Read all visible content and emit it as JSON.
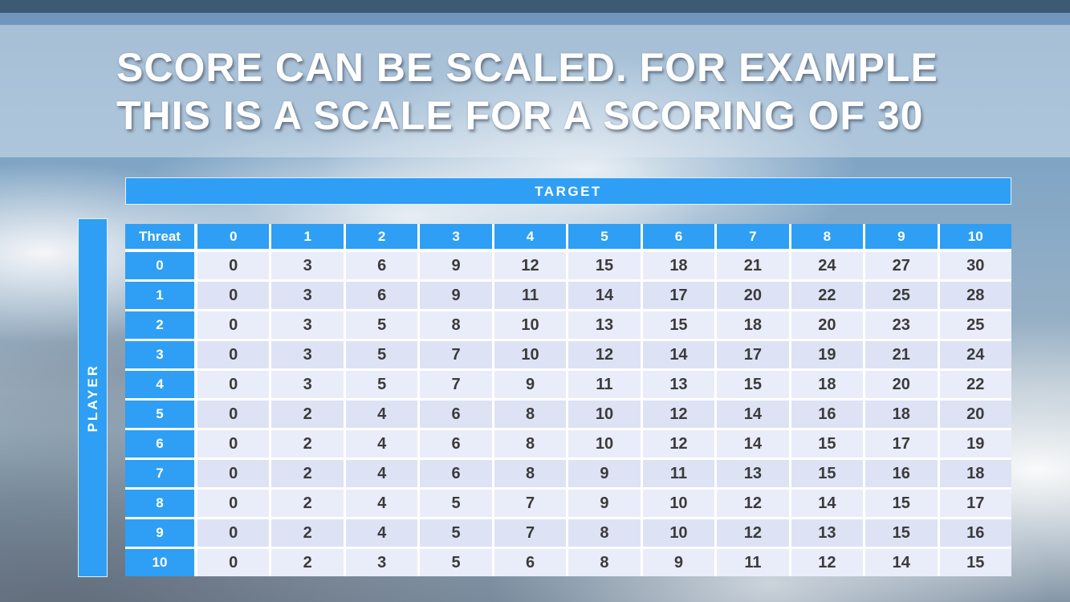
{
  "slide": {
    "title_line1": "SCORE CAN BE SCALED. FOR EXAMPLE",
    "title_line2": "THIS IS A SCALE FOR A SCORING OF 30"
  },
  "table": {
    "target_label": "TARGET",
    "player_label": "PLAYER",
    "corner_label": "Threat",
    "col_headers": [
      "0",
      "1",
      "2",
      "3",
      "4",
      "5",
      "6",
      "7",
      "8",
      "9",
      "10"
    ],
    "row_headers": [
      "0",
      "1",
      "2",
      "3",
      "4",
      "5",
      "6",
      "7",
      "8",
      "9",
      "10"
    ],
    "rows": [
      [
        0,
        3,
        6,
        9,
        12,
        15,
        18,
        21,
        24,
        27,
        30
      ],
      [
        0,
        3,
        6,
        9,
        11,
        14,
        17,
        20,
        22,
        25,
        28
      ],
      [
        0,
        3,
        5,
        8,
        10,
        13,
        15,
        18,
        20,
        23,
        25
      ],
      [
        0,
        3,
        5,
        7,
        10,
        12,
        14,
        17,
        19,
        21,
        24
      ],
      [
        0,
        3,
        5,
        7,
        9,
        11,
        13,
        15,
        18,
        20,
        22
      ],
      [
        0,
        2,
        4,
        6,
        8,
        10,
        12,
        14,
        16,
        18,
        20
      ],
      [
        0,
        2,
        4,
        6,
        8,
        10,
        12,
        14,
        15,
        17,
        19
      ],
      [
        0,
        2,
        4,
        6,
        8,
        9,
        11,
        13,
        15,
        16,
        18
      ],
      [
        0,
        2,
        4,
        5,
        7,
        9,
        10,
        12,
        14,
        15,
        17
      ],
      [
        0,
        2,
        4,
        5,
        7,
        8,
        10,
        12,
        13,
        15,
        16
      ],
      [
        0,
        2,
        3,
        5,
        6,
        8,
        9,
        11,
        12,
        14,
        15
      ]
    ]
  },
  "colors": {
    "header_blue": "#2e9ff4",
    "row_light": "#e9ecf9",
    "row_dark": "#dde3f5",
    "top_bar": "#3d5a74",
    "title_text": "#ffffff",
    "cell_text": "#3b3b3b"
  }
}
